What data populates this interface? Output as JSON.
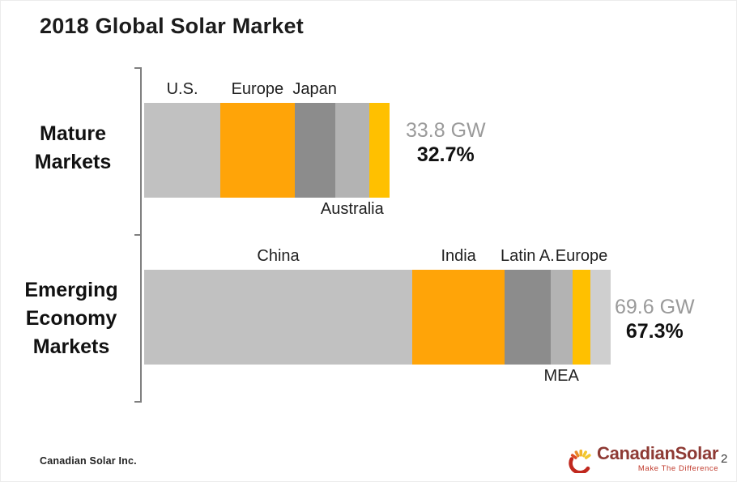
{
  "slide": {
    "title": "2018 Global Solar Market",
    "footer_company": "Canadian Solar Inc.",
    "page_number": "2",
    "logo": {
      "text": "CanadianSolar",
      "tagline": "Make The Difference",
      "icon": "sun-icon"
    }
  },
  "colors": {
    "segment_light_gray": "#C1C1C1",
    "segment_orange": "#FFA408",
    "segment_dark_gray": "#8C8C8C",
    "segment_mid_gray": "#B3B3B3",
    "segment_gold": "#FFC000",
    "segment_pale_gray": "#CFCFCF",
    "gw_text": "#9A9A9A",
    "pct_text": "#111111",
    "axis": "#7F7F7F",
    "logo_red": "#8E3A34",
    "tagline_red": "#C0392B"
  },
  "chart_data": {
    "type": "bar",
    "orientation": "horizontal-stacked",
    "title": "2018 Global Solar Market",
    "unit": "GW",
    "legend": "none",
    "grid": false,
    "bars": [
      {
        "category": "Mature Markets",
        "total_gw": 33.8,
        "total_label": "33.8 GW",
        "share_pct": 32.7,
        "share_label": "32.7%",
        "segments": [
          {
            "label": "U.S.",
            "gw": 10.5,
            "color": "#C1C1C1",
            "label_pos": "above"
          },
          {
            "label": "Europe",
            "gw": 10.2,
            "color": "#FFA408",
            "label_pos": "above"
          },
          {
            "label": "Japan",
            "gw": 5.6,
            "color": "#8C8C8C",
            "label_pos": "above"
          },
          {
            "label": "Australia",
            "gw": 4.7,
            "color": "#B3B3B3",
            "label_pos": "below"
          },
          {
            "label": "",
            "gw": 2.8,
            "color": "#FFC000",
            "label_pos": "none"
          }
        ]
      },
      {
        "category": "Emerging Economy Markets",
        "total_gw": 69.6,
        "total_label": "69.6 GW",
        "share_pct": 67.3,
        "share_label": "67.3%",
        "segments": [
          {
            "label": "China",
            "gw": 40.0,
            "color": "#C1C1C1",
            "label_pos": "above"
          },
          {
            "label": "India",
            "gw": 13.8,
            "color": "#FFA408",
            "label_pos": "above"
          },
          {
            "label": "Latin A.",
            "gw": 6.8,
            "color": "#8C8C8C",
            "label_pos": "above"
          },
          {
            "label": "MEA",
            "gw": 3.3,
            "color": "#B3B3B3",
            "label_pos": "below"
          },
          {
            "label": "Europe",
            "gw": 2.7,
            "color": "#FFC000",
            "label_pos": "above"
          },
          {
            "label": "",
            "gw": 3.0,
            "color": "#CFCFCF",
            "label_pos": "none"
          }
        ]
      }
    ]
  }
}
